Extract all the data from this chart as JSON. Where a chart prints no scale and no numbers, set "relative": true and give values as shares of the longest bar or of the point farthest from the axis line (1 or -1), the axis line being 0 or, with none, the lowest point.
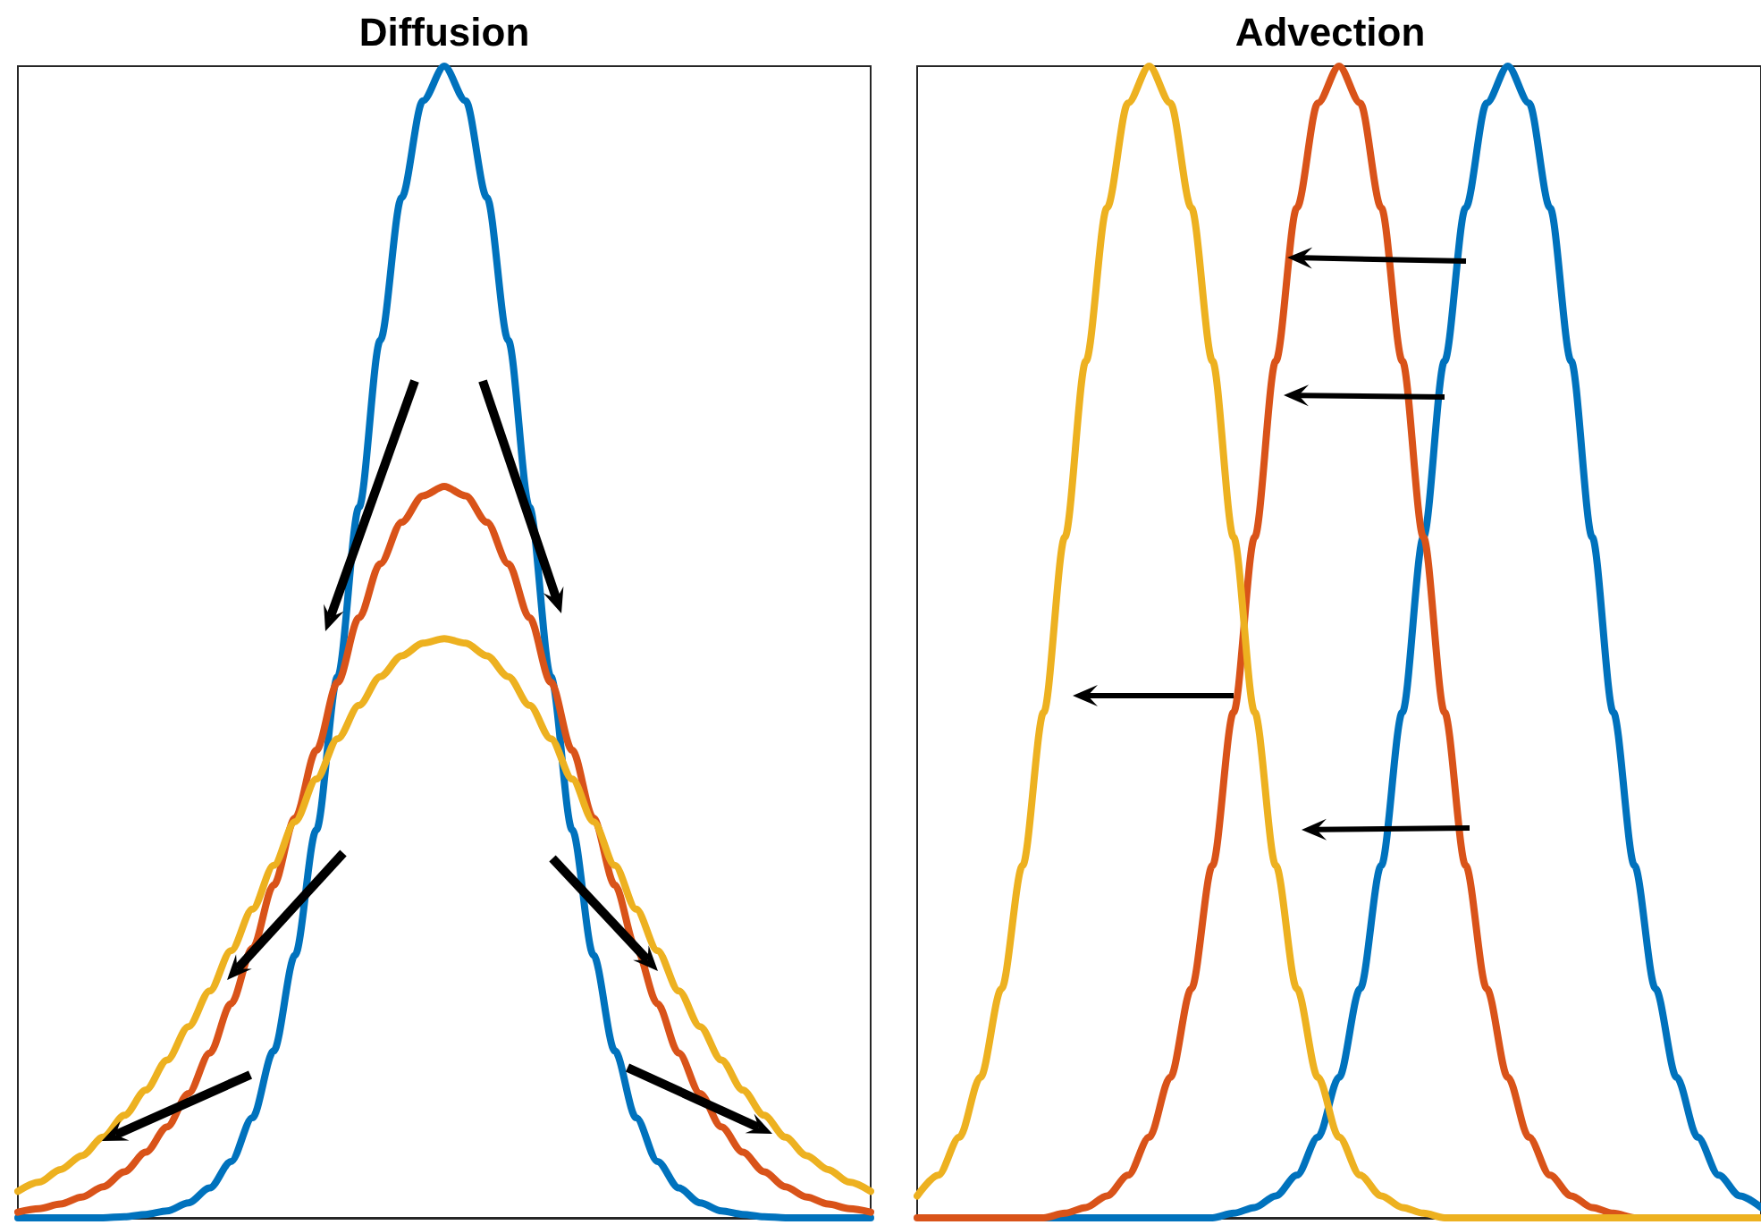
{
  "chart_data": [
    {
      "type": "line",
      "title": "Diffusion",
      "relative": true,
      "marker": "none",
      "categories": [
        null,
        null,
        null,
        null,
        null,
        null,
        null,
        null,
        null,
        null,
        null,
        null,
        null,
        null,
        null,
        null,
        null,
        null,
        null,
        null,
        null,
        null,
        null,
        null,
        null,
        null,
        null,
        null,
        null,
        null,
        null,
        null,
        null,
        null,
        null,
        null,
        null,
        null,
        null,
        null,
        null
      ],
      "series": [
        {
          "color": "#0072bd",
          "values": [
            0,
            0,
            0,
            0,
            0,
            0.001,
            0.003,
            0.006,
            0.013,
            0.026,
            0.049,
            0.087,
            0.145,
            0.228,
            0.337,
            0.47,
            0.617,
            0.762,
            0.886,
            0.97,
            1,
            0.97,
            0.886,
            0.762,
            0.617,
            0.47,
            0.337,
            0.228,
            0.145,
            0.087,
            0.049,
            0.026,
            0.013,
            0.006,
            0.003,
            0.001,
            0,
            0,
            0,
            0,
            0
          ]
        },
        {
          "color": "#d95319",
          "values": [
            0.005,
            0.008,
            0.012,
            0.018,
            0.027,
            0.04,
            0.057,
            0.079,
            0.108,
            0.143,
            0.186,
            0.234,
            0.289,
            0.347,
            0.406,
            0.465,
            0.521,
            0.568,
            0.604,
            0.627,
            0.635,
            0.627,
            0.604,
            0.568,
            0.521,
            0.465,
            0.406,
            0.347,
            0.289,
            0.234,
            0.186,
            0.143,
            0.108,
            0.079,
            0.057,
            0.04,
            0.027,
            0.018,
            0.012,
            0.008,
            0.005
          ]
        },
        {
          "color": "#edb120",
          "values": [
            0.023,
            0.031,
            0.042,
            0.054,
            0.07,
            0.089,
            0.111,
            0.137,
            0.166,
            0.197,
            0.232,
            0.268,
            0.306,
            0.344,
            0.381,
            0.416,
            0.445,
            0.47,
            0.488,
            0.499,
            0.503,
            0.499,
            0.488,
            0.47,
            0.445,
            0.416,
            0.381,
            0.344,
            0.306,
            0.268,
            0.232,
            0.197,
            0.166,
            0.137,
            0.111,
            0.089,
            0.07,
            0.054,
            0.042,
            0.031,
            0.023
          ]
        }
      ]
    },
    {
      "type": "line",
      "title": "Advection",
      "relative": true,
      "marker": "none",
      "categories": [
        null,
        null,
        null,
        null,
        null,
        null,
        null,
        null,
        null,
        null,
        null,
        null,
        null,
        null,
        null,
        null,
        null,
        null,
        null,
        null,
        null,
        null,
        null,
        null,
        null,
        null,
        null,
        null,
        null,
        null,
        null,
        null,
        null,
        null,
        null,
        null,
        null,
        null,
        null,
        null,
        null
      ],
      "series": [
        {
          "color": "#0072bd",
          "values": [
            null,
            null,
            null,
            null,
            null,
            0,
            0,
            0,
            0,
            0,
            0,
            0,
            0,
            0,
            0,
            0.004,
            0.009,
            0.019,
            0.037,
            0.07,
            0.122,
            0.199,
            0.306,
            0.439,
            0.591,
            0.744,
            0.877,
            0.968,
            1,
            0.968,
            0.877,
            0.744,
            0.591,
            0.439,
            0.306,
            0.199,
            0.122,
            0.07,
            0.037,
            0.019,
            0.009
          ]
        },
        {
          "color": "#d95319",
          "values": [
            0,
            0,
            0,
            0,
            0,
            0,
            0,
            0.004,
            0.009,
            0.019,
            0.037,
            0.07,
            0.122,
            0.199,
            0.306,
            0.439,
            0.591,
            0.744,
            0.877,
            0.968,
            1,
            0.968,
            0.877,
            0.744,
            0.591,
            0.439,
            0.306,
            0.199,
            0.122,
            0.07,
            0.037,
            0.019,
            0.009,
            0.004,
            0,
            0,
            null,
            null,
            null,
            null,
            null
          ]
        },
        {
          "color": "#edb120",
          "values": [
            0.019,
            0.037,
            0.07,
            0.122,
            0.199,
            0.306,
            0.439,
            0.591,
            0.744,
            0.877,
            0.968,
            1,
            0.968,
            0.877,
            0.744,
            0.591,
            0.439,
            0.306,
            0.199,
            0.122,
            0.07,
            0.037,
            0.019,
            0.009,
            0.004,
            0,
            0,
            0,
            0,
            0,
            0,
            0,
            0,
            0,
            0,
            0,
            0,
            0,
            0,
            0,
            0
          ]
        }
      ]
    }
  ]
}
